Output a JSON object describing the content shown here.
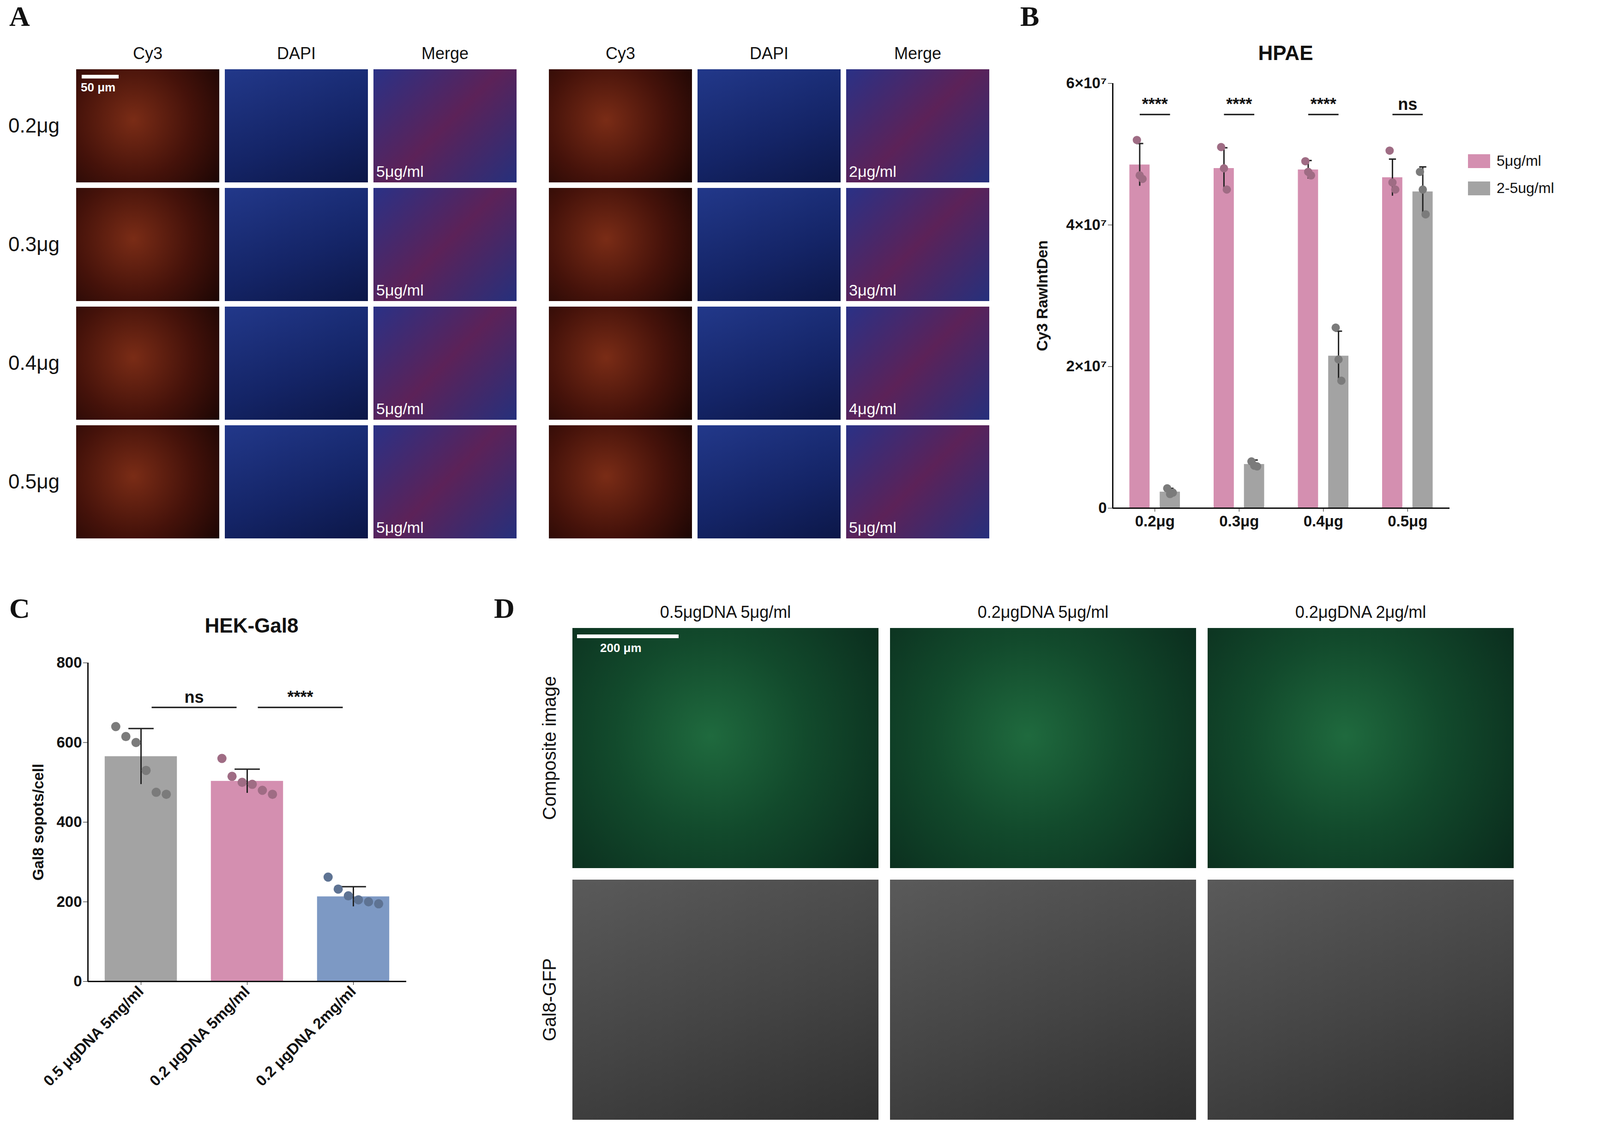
{
  "chart_data": [
    {
      "panel": "B",
      "type": "bar",
      "title": "HPAE",
      "ylabel": "Cy3 RawIntDen",
      "categories": [
        "0.2μg",
        "0.3μg",
        "0.4μg",
        "0.5μg"
      ],
      "series": [
        {
          "name": "5μg/ml",
          "color": "#d48fb0",
          "values": [
            48500000,
            48000000,
            47800000,
            46700000
          ],
          "errors": [
            3000000,
            2900000,
            1300000,
            2600000
          ],
          "points": [
            [
              52000000,
              47000000,
              46500000
            ],
            [
              51000000,
              48000000,
              45000000
            ],
            [
              49000000,
              47500000,
              47000000
            ],
            [
              50500000,
              46000000,
              45000000
            ]
          ]
        },
        {
          "name": "2-5ug/ml",
          "color": "#a3a3a3",
          "values": [
            2300000,
            6200000,
            21500000,
            44700000
          ],
          "errors": [
            500000,
            600000,
            3500000,
            3500000
          ],
          "points": [
            [
              2800000,
              2000000,
              2200000
            ],
            [
              6600000,
              6000000,
              5900000
            ],
            [
              25500000,
              21000000,
              18000000
            ],
            [
              47500000,
              45000000,
              41500000
            ]
          ]
        }
      ],
      "significance": [
        "****",
        "****",
        "****",
        "ns"
      ],
      "ylim": [
        0,
        60000000
      ],
      "yticks": [
        0,
        {
          "value": 20000000,
          "label": "2×10⁷"
        },
        {
          "value": 40000000,
          "label": "4×10⁷"
        },
        {
          "value": 60000000,
          "label": "6×10⁷"
        }
      ],
      "legend": "right"
    },
    {
      "panel": "C",
      "type": "bar",
      "title": "HEK-Gal8",
      "ylabel": "Gal8 sopots/cell",
      "categories": [
        "0.5 μgDNA 5mg/ml",
        "0.2 μgDNA 5mg/ml",
        "0.2 μgDNA 2mg/ml"
      ],
      "colors": [
        "#a3a3a3",
        "#d48fb0",
        "#7d99c4"
      ],
      "values": [
        565,
        503,
        213
      ],
      "errors": [
        70,
        30,
        25
      ],
      "points": [
        [
          640,
          615,
          600,
          530,
          475,
          470
        ],
        [
          560,
          515,
          500,
          495,
          480,
          470
        ],
        [
          262,
          232,
          215,
          205,
          200,
          195
        ]
      ],
      "comparisons": [
        {
          "from": "0.5 μgDNA 5mg/ml",
          "to": "0.2 μgDNA 5mg/ml",
          "label": "ns"
        },
        {
          "from": "0.2 μgDNA 5mg/ml",
          "to": "0.2 μgDNA 2mg/ml",
          "label": "****"
        }
      ],
      "ylim": [
        0,
        800
      ],
      "yticks": [
        0,
        200,
        400,
        600,
        800
      ]
    }
  ],
  "image_panels": [
    {
      "panel": "A",
      "scale_bar": "50 μm",
      "row_labels": [
        "0.2μg",
        "0.3μg",
        "0.4μg",
        "0.5μg"
      ],
      "groups": [
        {
          "columns": [
            "Cy3",
            "DAPI",
            "Merge"
          ],
          "merge_labels": [
            "5μg/ml",
            "5μg/ml",
            "5μg/ml",
            "5μg/ml"
          ]
        },
        {
          "columns": [
            "Cy3",
            "DAPI",
            "Merge"
          ],
          "merge_labels": [
            "2μg/ml",
            "3μg/ml",
            "4μg/ml",
            "5μg/ml"
          ]
        }
      ]
    },
    {
      "panel": "D",
      "scale_bar": "200 μm",
      "columns": [
        "0.5μgDNA 5μg/ml",
        "0.2μgDNA 5μg/ml",
        "0.2μgDNA 2μg/ml"
      ],
      "row_labels": [
        "Composite image",
        "Gal8-GFP"
      ]
    }
  ]
}
